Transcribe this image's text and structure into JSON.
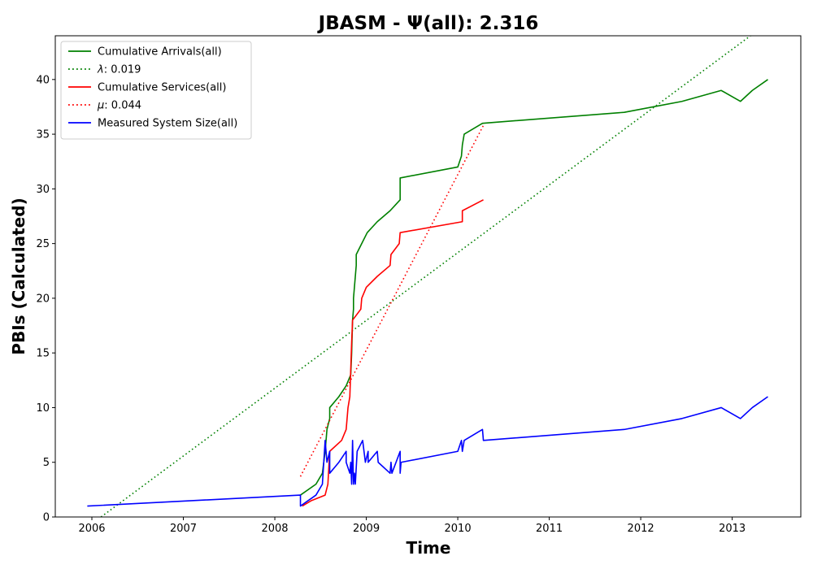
{
  "chart_data": {
    "type": "line",
    "title": "JBASM -  Ψ(all): 2.316",
    "xlabel": "Time",
    "ylabel": "PBIs (Calculated)",
    "xlim": [
      2005.6,
      2013.75
    ],
    "ylim": [
      0,
      44
    ],
    "x_ticks": [
      2006,
      2007,
      2008,
      2009,
      2010,
      2011,
      2012,
      2013
    ],
    "x_tick_labels": [
      "2006",
      "2007",
      "2008",
      "2009",
      "2010",
      "2011",
      "2012",
      "2013"
    ],
    "y_ticks": [
      0,
      5,
      10,
      15,
      20,
      25,
      30,
      35,
      40
    ],
    "y_tick_labels": [
      "0",
      "5",
      "10",
      "15",
      "20",
      "25",
      "30",
      "35",
      "40"
    ],
    "legend_position": "upper-left",
    "grid": false,
    "series": [
      {
        "name": "Cumulative Arrivals(all)",
        "color": "#008000",
        "style": "solid",
        "points": [
          [
            2008.28,
            2
          ],
          [
            2008.45,
            3
          ],
          [
            2008.52,
            4
          ],
          [
            2008.55,
            6
          ],
          [
            2008.57,
            8
          ],
          [
            2008.6,
            9
          ],
          [
            2008.6,
            10
          ],
          [
            2008.65,
            10.5
          ],
          [
            2008.7,
            11
          ],
          [
            2008.78,
            12
          ],
          [
            2008.83,
            13
          ],
          [
            2008.84,
            15
          ],
          [
            2008.85,
            18
          ],
          [
            2008.86,
            19
          ],
          [
            2008.86,
            20
          ],
          [
            2008.87,
            21
          ],
          [
            2008.89,
            23
          ],
          [
            2008.89,
            24
          ],
          [
            2008.95,
            25
          ],
          [
            2009.01,
            26
          ],
          [
            2009.12,
            27
          ],
          [
            2009.26,
            28
          ],
          [
            2009.37,
            29
          ],
          [
            2009.37,
            31
          ],
          [
            2010.0,
            32
          ],
          [
            2010.04,
            33
          ],
          [
            2010.05,
            34
          ],
          [
            2010.07,
            35
          ],
          [
            2010.27,
            36
          ],
          [
            2011.82,
            37
          ],
          [
            2012.45,
            38
          ],
          [
            2012.88,
            39
          ],
          [
            2013.09,
            38
          ],
          [
            2013.22,
            39
          ],
          [
            2013.39,
            40
          ]
        ]
      },
      {
        "name": "λ: 0.019",
        "color": "#008000",
        "style": "dotted",
        "points": [
          [
            2006.1,
            0
          ],
          [
            2013.2,
            44
          ]
        ]
      },
      {
        "name": "Cumulative Services(all)",
        "color": "#ff0000",
        "style": "solid",
        "points": [
          [
            2008.3,
            1
          ],
          [
            2008.4,
            1.5
          ],
          [
            2008.55,
            2
          ],
          [
            2008.58,
            3
          ],
          [
            2008.6,
            6
          ],
          [
            2008.73,
            7
          ],
          [
            2008.78,
            8
          ],
          [
            2008.8,
            10
          ],
          [
            2008.82,
            11
          ],
          [
            2008.84,
            16
          ],
          [
            2008.85,
            18
          ],
          [
            2008.94,
            19
          ],
          [
            2008.95,
            20
          ],
          [
            2009.0,
            21
          ],
          [
            2009.12,
            22
          ],
          [
            2009.26,
            23
          ],
          [
            2009.27,
            24
          ],
          [
            2009.36,
            25
          ],
          [
            2009.37,
            26
          ],
          [
            2010.05,
            27
          ],
          [
            2010.05,
            28
          ],
          [
            2010.28,
            29
          ]
        ]
      },
      {
        "name": "μ: 0.044",
        "color": "#ff0000",
        "style": "dotted",
        "points": [
          [
            2008.28,
            3.7
          ],
          [
            2010.28,
            35.8
          ]
        ]
      },
      {
        "name": "Measured System Size(all)",
        "color": "#0000ff",
        "style": "solid",
        "points": [
          [
            2005.95,
            1
          ],
          [
            2008.28,
            2
          ],
          [
            2008.28,
            1
          ],
          [
            2008.45,
            2
          ],
          [
            2008.52,
            3
          ],
          [
            2008.55,
            7
          ],
          [
            2008.57,
            5
          ],
          [
            2008.6,
            6
          ],
          [
            2008.6,
            4
          ],
          [
            2008.7,
            5
          ],
          [
            2008.78,
            6
          ],
          [
            2008.78,
            5
          ],
          [
            2008.82,
            4
          ],
          [
            2008.83,
            5
          ],
          [
            2008.84,
            3
          ],
          [
            2008.85,
            7
          ],
          [
            2008.86,
            3
          ],
          [
            2008.87,
            4
          ],
          [
            2008.88,
            3
          ],
          [
            2008.9,
            6
          ],
          [
            2008.96,
            7
          ],
          [
            2008.99,
            5
          ],
          [
            2009.02,
            6
          ],
          [
            2009.02,
            5
          ],
          [
            2009.12,
            6
          ],
          [
            2009.13,
            5
          ],
          [
            2009.26,
            4
          ],
          [
            2009.27,
            5
          ],
          [
            2009.28,
            4
          ],
          [
            2009.37,
            6
          ],
          [
            2009.37,
            4
          ],
          [
            2009.38,
            5
          ],
          [
            2010.0,
            6
          ],
          [
            2010.04,
            7
          ],
          [
            2010.05,
            6
          ],
          [
            2010.07,
            7
          ],
          [
            2010.27,
            8
          ],
          [
            2010.28,
            7
          ],
          [
            2011.82,
            8
          ],
          [
            2012.45,
            9
          ],
          [
            2012.88,
            10
          ],
          [
            2013.09,
            9
          ],
          [
            2013.22,
            10
          ],
          [
            2013.39,
            11
          ]
        ]
      }
    ]
  }
}
